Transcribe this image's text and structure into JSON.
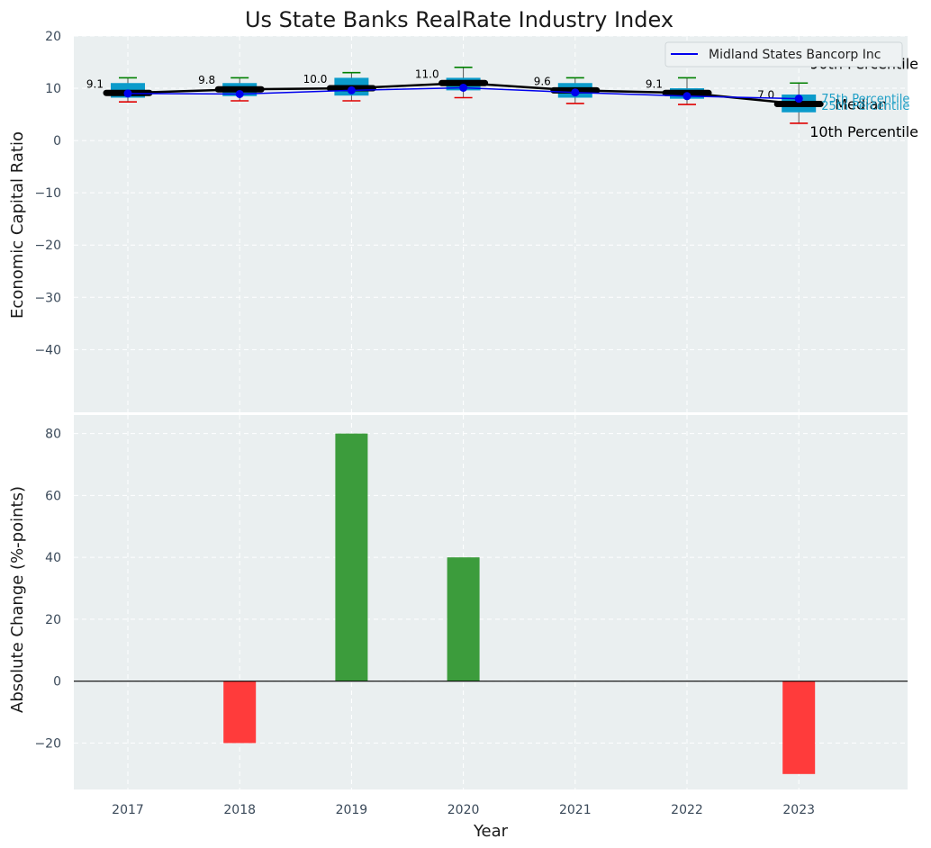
{
  "chart_data": [
    {
      "type": "box",
      "title": "Us State Banks RealRate Industry Index",
      "ylabel": "Economic Capital Ratio",
      "ylim": [
        -52,
        20
      ],
      "yticks": [
        20,
        10,
        0,
        -10,
        -20,
        -30,
        -40
      ],
      "categories": [
        "2017",
        "2018",
        "2019",
        "2020",
        "2021",
        "2022",
        "2023"
      ],
      "boxes": [
        {
          "p10": 7.4,
          "q1": 8.2,
          "median": 9.1,
          "q3": 11.0,
          "p90": 12.0
        },
        {
          "p10": 7.6,
          "q1": 8.5,
          "median": 9.8,
          "q3": 11.0,
          "p90": 12.0
        },
        {
          "p10": 7.6,
          "q1": 8.6,
          "median": 10.0,
          "q3": 12.0,
          "p90": 13.0
        },
        {
          "p10": 8.2,
          "q1": 9.6,
          "median": 11.0,
          "q3": 12.0,
          "p90": 14.0
        },
        {
          "p10": 7.1,
          "q1": 8.2,
          "median": 9.6,
          "q3": 11.0,
          "p90": 12.0
        },
        {
          "p10": 6.9,
          "q1": 8.0,
          "median": 9.1,
          "q3": 10.0,
          "p90": 12.0
        },
        {
          "p10": 3.3,
          "q1": 5.4,
          "median": 7.0,
          "q3": 8.8,
          "p90": 11.0
        }
      ],
      "median_labels": [
        "9.1",
        "9.8",
        "10.0",
        "11.0",
        "9.6",
        "9.1",
        "7.0"
      ],
      "series": [
        {
          "name": "Midland States Bancorp Inc",
          "values": [
            9.0,
            8.9,
            9.6,
            10.1,
            9.2,
            8.5,
            8.0
          ]
        }
      ],
      "annotations": {
        "p90": "90th Percentile",
        "median": "Median",
        "p10": "10th Percentile",
        "q3": "75th Percentile",
        "q1": "25th Percentile"
      },
      "legend_position": "top-right",
      "grid": true
    },
    {
      "type": "bar",
      "ylabel": "Absolute Change (%-points)",
      "xlabel": "Year",
      "ylim": [
        -35,
        86
      ],
      "yticks": [
        80,
        60,
        40,
        20,
        0,
        -20
      ],
      "categories": [
        "2017",
        "2018",
        "2019",
        "2020",
        "2021",
        "2022",
        "2023"
      ],
      "values": [
        0,
        -20,
        80,
        40,
        0,
        0,
        -30
      ],
      "grid": true
    }
  ],
  "colors": {
    "panel_bg": "#eaeff0",
    "box_fill": "#0b9bcb",
    "whisker_top": "#008000",
    "whisker_bottom": "#e00000",
    "company_line": "#0000ee",
    "median_line": "#000000",
    "bar_positive": "#3c9c3c",
    "bar_negative": "#ff3b3b"
  }
}
